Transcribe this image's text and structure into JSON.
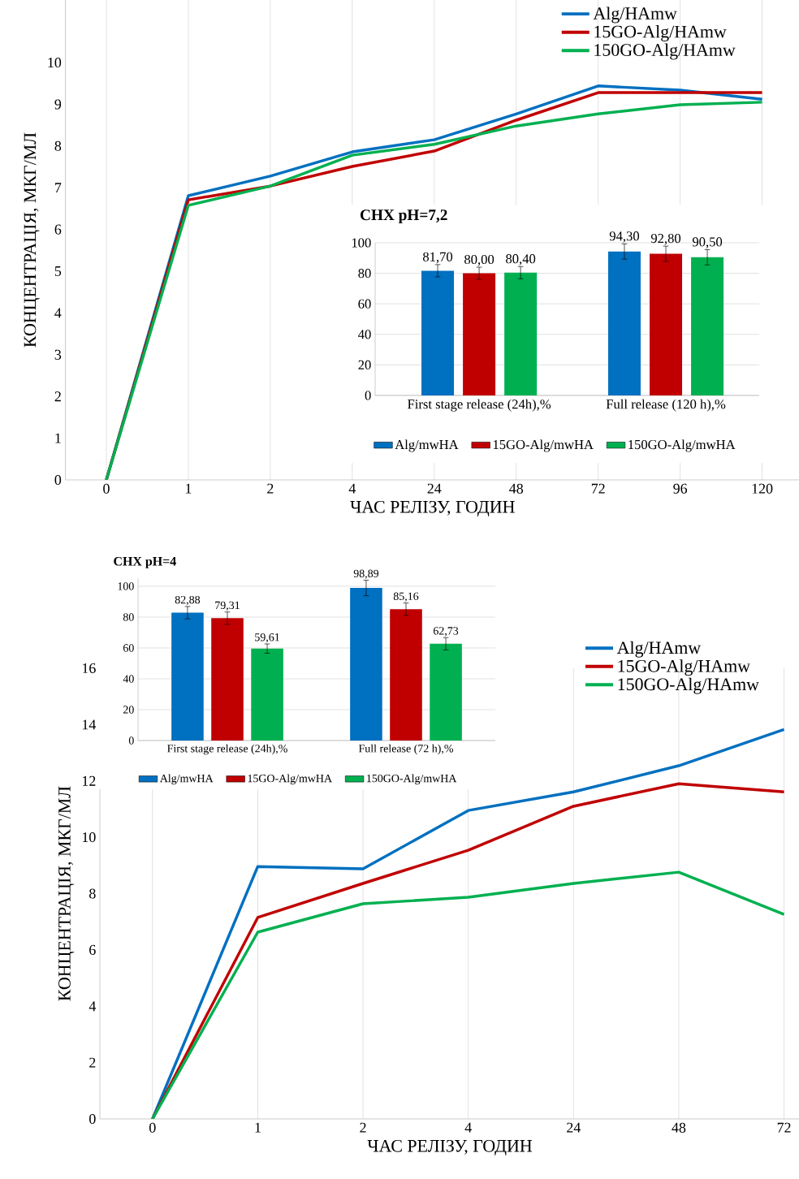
{
  "chart_data": [
    {
      "type": "line",
      "xlabel": "ЧАС РЕЛІЗУ, ГОДИН",
      "ylabel": "КОНЦЕНТРАЦІЯ, МКГ/МЛ",
      "categories": [
        "0",
        "1",
        "2",
        "4",
        "24",
        "48",
        "72",
        "96",
        "120"
      ],
      "ylim": [
        0,
        11.5
      ],
      "yticks": [
        0,
        1,
        2,
        3,
        4,
        5,
        6,
        7,
        8,
        9,
        10
      ],
      "grid": "x",
      "legend": "top right",
      "series": [
        {
          "name": "Alg/HAmw",
          "color": "#0070c0",
          "values": [
            0,
            6.81,
            7.28,
            7.86,
            8.15,
            8.77,
            9.44,
            9.34,
            9.12
          ]
        },
        {
          "name": "15GO-Alg/HAmw",
          "color": "#c00000",
          "values": [
            0,
            6.71,
            7.04,
            7.51,
            7.88,
            8.62,
            9.28,
            9.28,
            9.28
          ]
        },
        {
          "name": "150GO-Alg/HAmw",
          "color": "#00b050",
          "values": [
            0,
            6.58,
            7.04,
            7.78,
            8.04,
            8.48,
            8.77,
            8.99,
            9.05
          ]
        }
      ]
    },
    {
      "type": "bar",
      "title": "CHX pH=7,2",
      "categories": [
        "First stage release (24h),%",
        "Full release (120 h),%"
      ],
      "ylim": [
        0,
        100
      ],
      "yticks": [
        0,
        20,
        40,
        60,
        80,
        100
      ],
      "grid": "y",
      "legend": "bottom",
      "series": [
        {
          "name": "Alg/mwHA",
          "color": "#0070c0",
          "values": [
            81.7,
            94.3
          ],
          "errors": [
            4,
            5
          ],
          "value_labels": [
            "81,70",
            "94,30"
          ]
        },
        {
          "name": "15GO-Alg/mwHA",
          "color": "#c00000",
          "values": [
            80.0,
            92.8
          ],
          "errors": [
            4,
            5
          ],
          "value_labels": [
            "80,00",
            "92,80"
          ]
        },
        {
          "name": "150GO-Alg/mwHA",
          "color": "#00b050",
          "values": [
            80.4,
            90.5
          ],
          "errors": [
            4,
            5
          ],
          "value_labels": [
            "80,40",
            "90,50"
          ]
        }
      ]
    },
    {
      "type": "bar",
      "title": "CHX pH=4",
      "categories": [
        "First stage release (24h),%",
        "Full release (72 h),%"
      ],
      "ylim": [
        0,
        105
      ],
      "yticks": [
        0,
        20,
        40,
        60,
        80,
        100
      ],
      "grid": "y",
      "legend": "bottom",
      "series": [
        {
          "name": "Alg/mwHA",
          "color": "#0070c0",
          "values": [
            82.88,
            98.89
          ],
          "errors": [
            4,
            5
          ],
          "value_labels": [
            "82,88",
            "98,89"
          ]
        },
        {
          "name": "15GO-Alg/mwHA",
          "color": "#c00000",
          "values": [
            79.31,
            85.16
          ],
          "errors": [
            4,
            4
          ],
          "value_labels": [
            "79,31",
            "85,16"
          ]
        },
        {
          "name": "150GO-Alg/mwHA",
          "color": "#00b050",
          "values": [
            59.61,
            62.73
          ],
          "errors": [
            3,
            4
          ],
          "value_labels": [
            "59,61",
            "62,73"
          ]
        }
      ]
    },
    {
      "type": "line",
      "xlabel": "ЧАС РЕЛІЗУ, ГОДИН",
      "ylabel": "КОНЦЕНТРАЦІЯ, МКГ/МЛ",
      "categories": [
        "0",
        "1",
        "2",
        "4",
        "24",
        "48",
        "72"
      ],
      "ylim": [
        0,
        16
      ],
      "yticks": [
        0,
        2,
        4,
        6,
        8,
        10,
        12,
        14,
        16
      ],
      "grid": "x",
      "legend": "top right",
      "series": [
        {
          "name": "Alg/HAmw",
          "color": "#0070c0",
          "values": [
            0,
            8.96,
            8.88,
            10.95,
            11.61,
            12.54,
            13.83
          ]
        },
        {
          "name": "15GO-Alg/HAmw",
          "color": "#c00000",
          "values": [
            0,
            7.15,
            8.36,
            9.54,
            11.1,
            11.9,
            11.61
          ]
        },
        {
          "name": "150GO-Alg/HAmw",
          "color": "#00b050",
          "values": [
            0,
            6.63,
            7.64,
            7.87,
            8.36,
            8.76,
            7.26
          ]
        }
      ]
    }
  ]
}
